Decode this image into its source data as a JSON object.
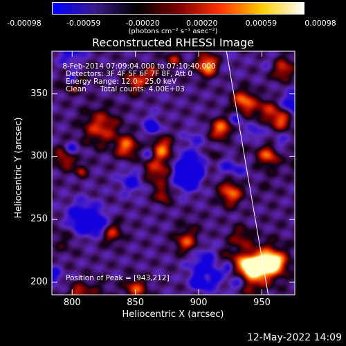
{
  "colorbar": {
    "ticks": [
      "-0.00098",
      "-0.00059",
      "-0.00020",
      "0.00020",
      "0.00059",
      "0.00098"
    ],
    "unit_label": "(photons cm⁻² s⁻¹ asec⁻²)",
    "colors": [
      "#0000ff",
      "#3a1a8c",
      "#000000",
      "#7a0000",
      "#ff3300",
      "#ffcc00",
      "#ffffff"
    ]
  },
  "chart_data": {
    "type": "heatmap",
    "title": "Reconstructed RHESSI Image",
    "xlabel": "Heliocentric X (arcsec)",
    "ylabel": "Heliocentric Y (arcsec)",
    "xlim": [
      784,
      976
    ],
    "ylim": [
      190,
      384
    ],
    "xticks": [
      "800",
      "850",
      "900",
      "950"
    ],
    "yticks": [
      "200",
      "250",
      "300",
      "350"
    ],
    "annotations": [
      " 8-Feb-2014 07:09:04.000 to 07:10:40.000",
      "Detectors: 3F 4F 5F 6F 7F 8F, Att 0",
      "Energy Range: 12.0 - 25.0 keV",
      "Clean      Total counts: 4.00E+03"
    ],
    "peak_label": "Position of Peak = [943,212]",
    "peak": [
      943,
      212
    ],
    "limb_line": [
      [
        922,
        384
      ],
      [
        955,
        190
      ]
    ],
    "hot_spots": [
      {
        "x": 943,
        "y": 212,
        "v": 1.0
      },
      {
        "x": 918,
        "y": 322,
        "v": 0.8
      },
      {
        "x": 907,
        "y": 373,
        "v": 0.85
      },
      {
        "x": 843,
        "y": 308,
        "v": 0.7
      },
      {
        "x": 871,
        "y": 307,
        "v": 0.6
      },
      {
        "x": 955,
        "y": 303,
        "v": 0.8
      },
      {
        "x": 965,
        "y": 330,
        "v": 0.7
      },
      {
        "x": 890,
        "y": 232,
        "v": 0.55
      },
      {
        "x": 925,
        "y": 270,
        "v": 0.6
      },
      {
        "x": 795,
        "y": 300,
        "v": 0.6
      },
      {
        "x": 805,
        "y": 190,
        "v": 0.5
      },
      {
        "x": 850,
        "y": 195,
        "v": 0.55
      },
      {
        "x": 960,
        "y": 215,
        "v": 0.6
      },
      {
        "x": 850,
        "y": 360,
        "v": 0.55
      },
      {
        "x": 800,
        "y": 360,
        "v": 0.45
      },
      {
        "x": 935,
        "y": 345,
        "v": 0.65
      },
      {
        "x": 965,
        "y": 370,
        "v": 0.6
      },
      {
        "x": 830,
        "y": 240,
        "v": 0.55
      }
    ]
  },
  "datestamp": "12-May-2022 14:09"
}
